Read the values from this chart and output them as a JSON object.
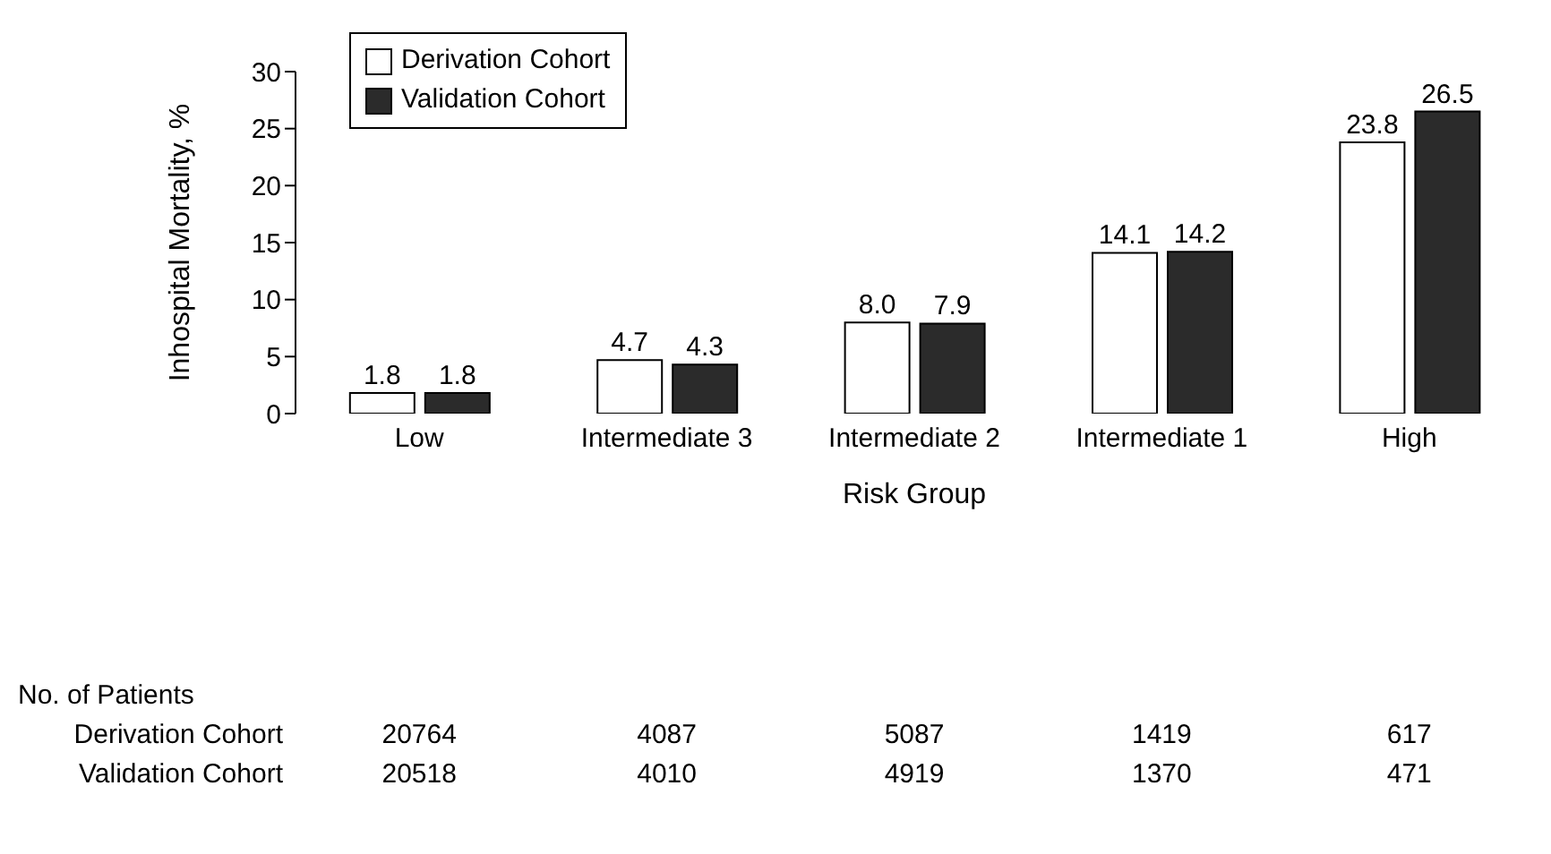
{
  "chart_data": {
    "type": "bar",
    "xlabel": "Risk Group",
    "ylabel": "Inhospital Mortality, %",
    "categories": [
      "Low",
      "Intermediate 3",
      "Intermediate 2",
      "Intermediate 1",
      "High"
    ],
    "series": [
      {
        "name": "Derivation Cohort",
        "color": "#ffffff",
        "values": [
          1.8,
          4.7,
          8.0,
          14.1,
          23.8
        ],
        "value_labels": [
          "1.8",
          "4.7",
          "8.0",
          "14.1",
          "23.8"
        ]
      },
      {
        "name": "Validation Cohort",
        "color": "#2b2b2b",
        "values": [
          1.8,
          4.3,
          7.9,
          14.2,
          26.5
        ],
        "value_labels": [
          "1.8",
          "4.3",
          "7.9",
          "14.2",
          "26.5"
        ]
      }
    ],
    "ylim": [
      0,
      30
    ],
    "yticks": [
      0,
      5,
      10,
      15,
      20,
      25,
      30
    ],
    "legend": "top left",
    "annotations": [
      "No. of Patients",
      "Derivation Cohort",
      "20764",
      "4087",
      "5087",
      "1419",
      "617",
      "Validation Cohort",
      "20518",
      "4010",
      "4919",
      "1370",
      "471"
    ]
  }
}
